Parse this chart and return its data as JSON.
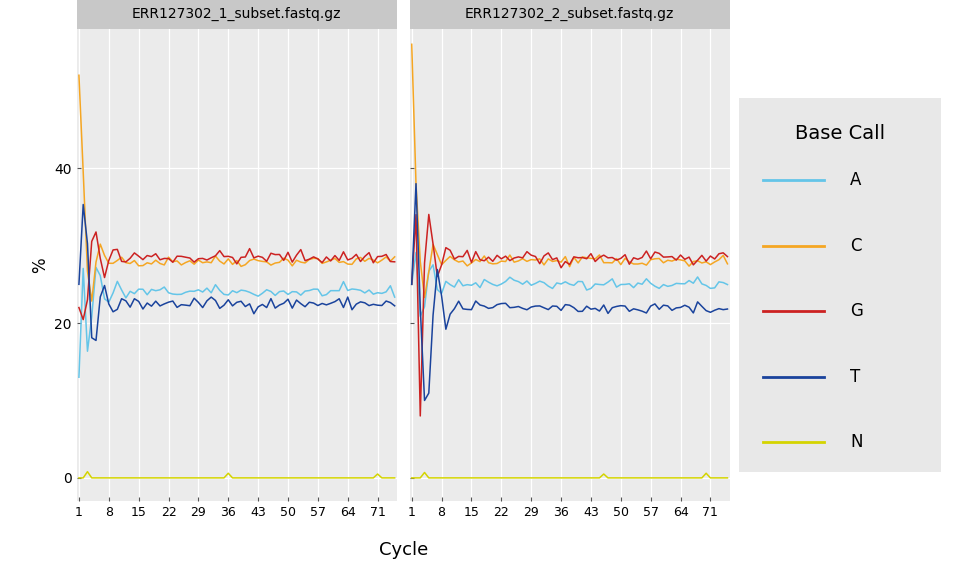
{
  "panels": [
    "ERR127302_1_subset.fastq.gz",
    "ERR127302_2_subset.fastq.gz"
  ],
  "cycles": 75,
  "x_ticks": [
    1,
    8,
    15,
    22,
    29,
    36,
    43,
    50,
    57,
    64,
    71
  ],
  "y_ticks": [
    0,
    20,
    40
  ],
  "xlabel": "Cycle",
  "ylabel": "%",
  "legend_title": "Base Call",
  "legend_labels": [
    "A",
    "C",
    "G",
    "T",
    "N"
  ],
  "colors": {
    "A": "#64C5E8",
    "C": "#F5A623",
    "G": "#CC2222",
    "T": "#1A439C",
    "N": "#D4D400"
  },
  "background_color": "#EBEBEB",
  "strip_bg": "#C8C8C8",
  "legend_bg": "#E8E8E8",
  "ylim": [
    -3,
    58
  ],
  "figsize": [
    9.6,
    5.76
  ]
}
